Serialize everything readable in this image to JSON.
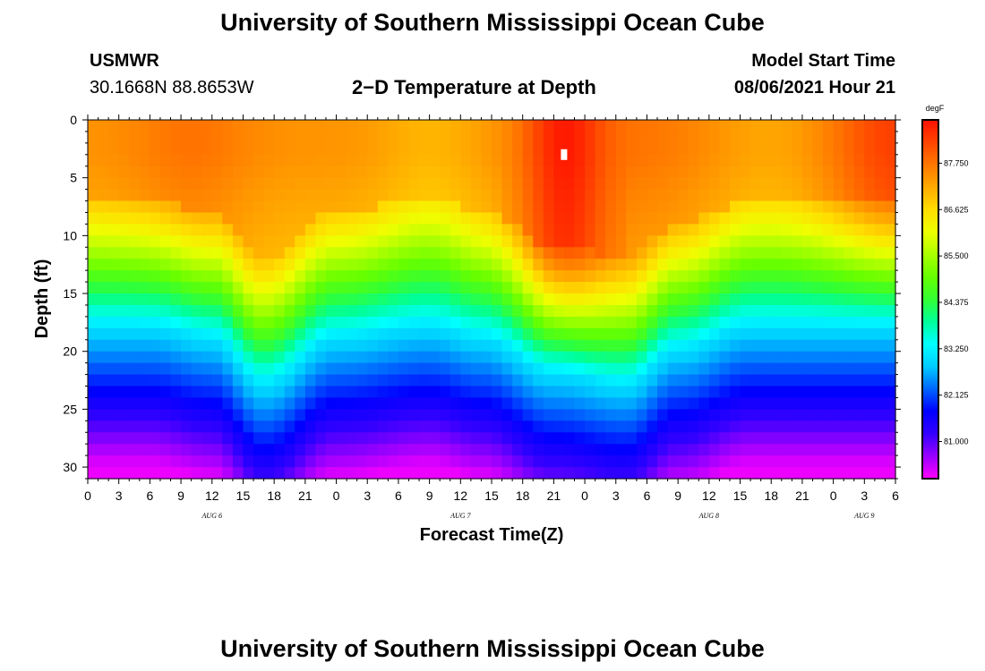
{
  "page": {
    "title_top": "University of Southern Mississippi Ocean Cube",
    "title_bottom": "University of Southern Mississippi Ocean Cube",
    "station": "USMWR",
    "coords": "30.1668N  88.8653W",
    "subtitle": "2−D Temperature at Depth",
    "model_start_label": "Model Start Time",
    "model_start_value": "08/06/2021 Hour 21"
  },
  "chart_data": {
    "type": "heatmap",
    "title": "2−D Temperature at Depth",
    "xlabel": "Forecast Time(Z)",
    "ylabel": "Depth (ft)",
    "x_ticks": [
      "0",
      "3",
      "6",
      "9",
      "12",
      "15",
      "18",
      "21",
      "0",
      "3",
      "6",
      "9",
      "12",
      "15",
      "18",
      "21",
      "0",
      "3",
      "6",
      "9",
      "12",
      "15",
      "18",
      "21",
      "0",
      "3",
      "6"
    ],
    "x_range_hours": [
      0,
      78
    ],
    "date_labels": [
      {
        "text": "AUG 6",
        "hour": 12
      },
      {
        "text": "AUG 7",
        "hour": 36
      },
      {
        "text": "AUG 8",
        "hour": 60
      },
      {
        "text": "AUG 9",
        "hour": 75
      }
    ],
    "y_ticks": [
      "0",
      "5",
      "10",
      "15",
      "20",
      "25",
      "30"
    ],
    "y_range_ft": [
      0,
      31
    ],
    "colorbar": {
      "unit": "degF",
      "labels": [
        "87.750",
        "86.625",
        "85.500",
        "84.375",
        "83.250",
        "82.125",
        "81.000"
      ],
      "range": [
        80.1,
        88.8
      ],
      "colors": [
        "#ff00ff",
        "#9900ff",
        "#3300ff",
        "#0000ff",
        "#0066ff",
        "#00ccff",
        "#00ffff",
        "#00ff99",
        "#33ff33",
        "#66ff00",
        "#aaff00",
        "#eeff00",
        "#ffdd00",
        "#ffaa00",
        "#ff7700",
        "#ff4400",
        "#ff1100"
      ]
    },
    "thermocline_depth_ft_by_hour": [
      {
        "hour": 0,
        "depth": 16
      },
      {
        "hour": 6,
        "depth": 16
      },
      {
        "hour": 12,
        "depth": 17
      },
      {
        "hour": 17,
        "depth": 21
      },
      {
        "hour": 24,
        "depth": 17
      },
      {
        "hour": 33,
        "depth": 16
      },
      {
        "hour": 38,
        "depth": 17
      },
      {
        "hour": 45,
        "depth": 20
      },
      {
        "hour": 52,
        "depth": 21
      },
      {
        "hour": 57,
        "depth": 18
      },
      {
        "hour": 64,
        "depth": 16
      },
      {
        "hour": 78,
        "depth": 16
      }
    ],
    "max_temp_location": {
      "hour": 46,
      "depth_ft": 3
    }
  }
}
